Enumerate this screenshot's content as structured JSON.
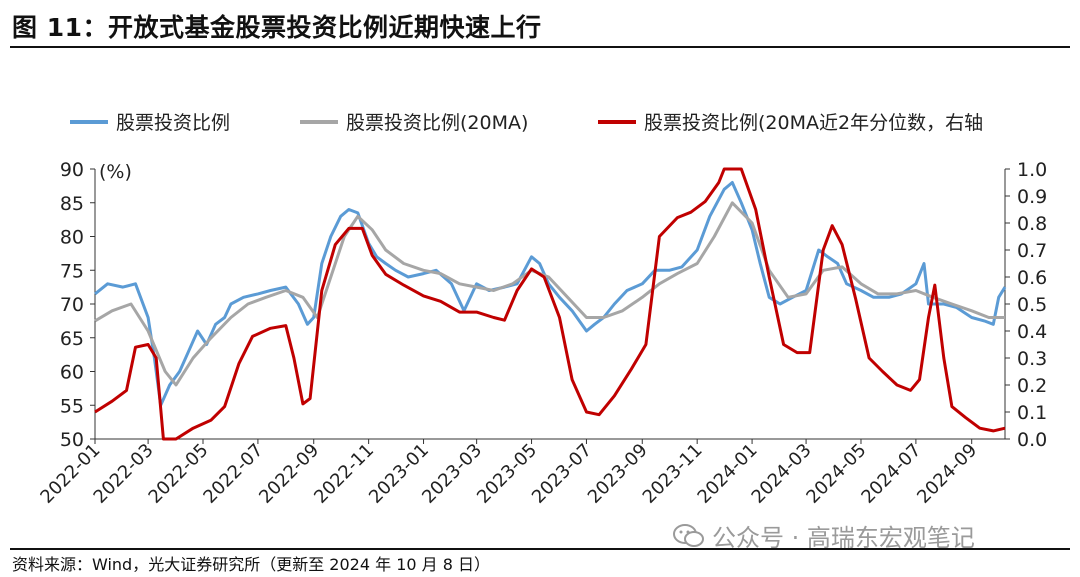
{
  "figure": {
    "title": "图 11：开放式基金股票投资比例近期快速上行",
    "source": "资料来源：Wind，光大证券研究所（更新至 2024 年 10 月 8 日）",
    "watermark": "公众号 · 高瑞东宏观笔记",
    "watermark_icon": "wechat-icon"
  },
  "chart_data": {
    "type": "line",
    "title": "",
    "ylabel": "(%)",
    "y2label": "",
    "ylim": [
      50,
      90
    ],
    "y2lim": [
      0.0,
      1.0
    ],
    "xlim": [
      "2022-01",
      "2024-10"
    ],
    "yticks": [
      "50",
      "55",
      "60",
      "65",
      "70",
      "75",
      "80",
      "85",
      "90"
    ],
    "y2ticks": [
      "0.0",
      "0.1",
      "0.2",
      "0.3",
      "0.4",
      "0.5",
      "0.6",
      "0.7",
      "0.8",
      "0.9",
      "1.0"
    ],
    "xticks": [
      "2022-01",
      "2022-03",
      "2022-05",
      "2022-07",
      "2022-09",
      "2022-11",
      "2023-01",
      "2023-03",
      "2023-05",
      "2023-07",
      "2023-09",
      "2023-11",
      "2024-01",
      "2024-03",
      "2024-05",
      "2024-07",
      "2024-09"
    ],
    "legend": "top",
    "grid": false,
    "series": [
      {
        "name": "股票投资比例",
        "color": "#5b9bd5",
        "axis": "left",
        "points": [
          [
            "2022-01-01",
            71.5
          ],
          [
            "2022-01-15",
            73
          ],
          [
            "2022-02-01",
            72.5
          ],
          [
            "2022-02-15",
            73
          ],
          [
            "2022-03-01",
            68
          ],
          [
            "2022-03-08",
            62
          ],
          [
            "2022-03-15",
            55
          ],
          [
            "2022-03-25",
            58
          ],
          [
            "2022-04-05",
            60
          ],
          [
            "2022-04-15",
            63
          ],
          [
            "2022-04-25",
            66
          ],
          [
            "2022-05-05",
            64
          ],
          [
            "2022-05-15",
            67
          ],
          [
            "2022-05-25",
            68
          ],
          [
            "2022-06-01",
            70
          ],
          [
            "2022-06-15",
            71
          ],
          [
            "2022-07-01",
            71.5
          ],
          [
            "2022-07-15",
            72
          ],
          [
            "2022-08-01",
            72.5
          ],
          [
            "2022-08-15",
            70
          ],
          [
            "2022-08-25",
            67
          ],
          [
            "2022-09-01",
            68
          ],
          [
            "2022-09-10",
            76
          ],
          [
            "2022-09-20",
            80
          ],
          [
            "2022-10-01",
            83
          ],
          [
            "2022-10-10",
            84
          ],
          [
            "2022-10-20",
            83.5
          ],
          [
            "2022-11-01",
            79
          ],
          [
            "2022-11-10",
            77
          ],
          [
            "2022-11-20",
            76
          ],
          [
            "2022-12-01",
            75
          ],
          [
            "2022-12-15",
            74
          ],
          [
            "2023-01-01",
            74.5
          ],
          [
            "2023-01-15",
            75
          ],
          [
            "2023-02-01",
            73
          ],
          [
            "2023-02-15",
            69
          ],
          [
            "2023-03-01",
            73
          ],
          [
            "2023-03-15",
            72
          ],
          [
            "2023-04-01",
            72.5
          ],
          [
            "2023-04-15",
            73
          ],
          [
            "2023-05-01",
            77
          ],
          [
            "2023-05-10",
            76
          ],
          [
            "2023-05-20",
            73
          ],
          [
            "2023-06-01",
            71
          ],
          [
            "2023-06-15",
            69
          ],
          [
            "2023-07-01",
            66
          ],
          [
            "2023-07-10",
            67
          ],
          [
            "2023-07-20",
            68
          ],
          [
            "2023-08-01",
            70
          ],
          [
            "2023-08-15",
            72
          ],
          [
            "2023-09-01",
            73
          ],
          [
            "2023-09-15",
            75
          ],
          [
            "2023-10-01",
            75
          ],
          [
            "2023-10-15",
            75.5
          ],
          [
            "2023-11-01",
            78
          ],
          [
            "2023-11-15",
            83
          ],
          [
            "2023-12-01",
            87
          ],
          [
            "2023-12-10",
            88
          ],
          [
            "2023-12-20",
            85
          ],
          [
            "2024-01-01",
            81
          ],
          [
            "2024-01-10",
            76
          ],
          [
            "2024-01-20",
            71
          ],
          [
            "2024-02-01",
            70
          ],
          [
            "2024-02-15",
            71
          ],
          [
            "2024-03-01",
            72
          ],
          [
            "2024-03-15",
            78
          ],
          [
            "2024-03-25",
            77
          ],
          [
            "2024-04-05",
            76
          ],
          [
            "2024-04-15",
            73
          ],
          [
            "2024-05-01",
            72
          ],
          [
            "2024-05-15",
            71
          ],
          [
            "2024-06-01",
            71
          ],
          [
            "2024-06-15",
            71.5
          ],
          [
            "2024-07-01",
            73
          ],
          [
            "2024-07-10",
            76
          ],
          [
            "2024-07-15",
            70
          ],
          [
            "2024-08-01",
            70
          ],
          [
            "2024-08-15",
            69.5
          ],
          [
            "2024-09-01",
            68
          ],
          [
            "2024-09-15",
            67.5
          ],
          [
            "2024-09-25",
            67
          ],
          [
            "2024-10-01",
            71
          ],
          [
            "2024-10-08",
            72.5
          ]
        ]
      },
      {
        "name": "股票投资比例(20MA)",
        "color": "#a6a6a6",
        "axis": "left",
        "points": [
          [
            "2022-01-01",
            67.5
          ],
          [
            "2022-01-20",
            69
          ],
          [
            "2022-02-10",
            70
          ],
          [
            "2022-03-01",
            66
          ],
          [
            "2022-03-20",
            60
          ],
          [
            "2022-04-01",
            58
          ],
          [
            "2022-04-20",
            62
          ],
          [
            "2022-05-10",
            65
          ],
          [
            "2022-06-01",
            68
          ],
          [
            "2022-06-20",
            70
          ],
          [
            "2022-07-10",
            71
          ],
          [
            "2022-08-01",
            72
          ],
          [
            "2022-08-20",
            71
          ],
          [
            "2022-09-05",
            68
          ],
          [
            "2022-09-20",
            74
          ],
          [
            "2022-10-05",
            80
          ],
          [
            "2022-10-20",
            83
          ],
          [
            "2022-11-05",
            81
          ],
          [
            "2022-11-20",
            78
          ],
          [
            "2022-12-10",
            76
          ],
          [
            "2023-01-01",
            75
          ],
          [
            "2023-01-20",
            74.5
          ],
          [
            "2023-02-10",
            73
          ],
          [
            "2023-03-01",
            72.5
          ],
          [
            "2023-03-20",
            72
          ],
          [
            "2023-04-10",
            73
          ],
          [
            "2023-05-01",
            75
          ],
          [
            "2023-05-20",
            74
          ],
          [
            "2023-06-10",
            71
          ],
          [
            "2023-07-01",
            68
          ],
          [
            "2023-07-20",
            68
          ],
          [
            "2023-08-10",
            69
          ],
          [
            "2023-09-01",
            71
          ],
          [
            "2023-09-20",
            73
          ],
          [
            "2023-10-10",
            74.5
          ],
          [
            "2023-11-01",
            76
          ],
          [
            "2023-11-20",
            80
          ],
          [
            "2023-12-10",
            85
          ],
          [
            "2024-01-01",
            82
          ],
          [
            "2024-01-20",
            75
          ],
          [
            "2024-02-10",
            71
          ],
          [
            "2024-03-01",
            71.5
          ],
          [
            "2024-03-20",
            75
          ],
          [
            "2024-04-10",
            75.5
          ],
          [
            "2024-05-01",
            73
          ],
          [
            "2024-05-20",
            71.5
          ],
          [
            "2024-06-10",
            71.5
          ],
          [
            "2024-07-01",
            72
          ],
          [
            "2024-07-20",
            71
          ],
          [
            "2024-08-10",
            70
          ],
          [
            "2024-09-01",
            69
          ],
          [
            "2024-09-20",
            68
          ],
          [
            "2024-10-08",
            68
          ]
        ]
      },
      {
        "name": "股票投资比例(20MA近2年分位数，右轴",
        "color": "#c00000",
        "axis": "right",
        "points": [
          [
            "2022-01-01",
            0.1
          ],
          [
            "2022-01-20",
            0.14
          ],
          [
            "2022-02-05",
            0.18
          ],
          [
            "2022-02-15",
            0.34
          ],
          [
            "2022-03-01",
            0.35
          ],
          [
            "2022-03-10",
            0.3
          ],
          [
            "2022-03-18",
            0.0
          ],
          [
            "2022-04-01",
            0.0
          ],
          [
            "2022-04-20",
            0.04
          ],
          [
            "2022-05-10",
            0.07
          ],
          [
            "2022-05-25",
            0.12
          ],
          [
            "2022-06-10",
            0.28
          ],
          [
            "2022-06-25",
            0.38
          ],
          [
            "2022-07-15",
            0.41
          ],
          [
            "2022-08-01",
            0.42
          ],
          [
            "2022-08-10",
            0.3
          ],
          [
            "2022-08-20",
            0.13
          ],
          [
            "2022-08-28",
            0.15
          ],
          [
            "2022-09-10",
            0.55
          ],
          [
            "2022-09-25",
            0.72
          ],
          [
            "2022-10-10",
            0.78
          ],
          [
            "2022-10-25",
            0.78
          ],
          [
            "2022-11-05",
            0.68
          ],
          [
            "2022-11-20",
            0.61
          ],
          [
            "2022-12-10",
            0.57
          ],
          [
            "2023-01-01",
            0.53
          ],
          [
            "2023-01-20",
            0.51
          ],
          [
            "2023-02-10",
            0.47
          ],
          [
            "2023-03-01",
            0.47
          ],
          [
            "2023-03-20",
            0.45
          ],
          [
            "2023-04-01",
            0.44
          ],
          [
            "2023-04-15",
            0.55
          ],
          [
            "2023-05-01",
            0.63
          ],
          [
            "2023-05-15",
            0.6
          ],
          [
            "2023-06-01",
            0.45
          ],
          [
            "2023-06-15",
            0.22
          ],
          [
            "2023-07-01",
            0.1
          ],
          [
            "2023-07-15",
            0.09
          ],
          [
            "2023-08-01",
            0.16
          ],
          [
            "2023-08-20",
            0.26
          ],
          [
            "2023-09-05",
            0.35
          ],
          [
            "2023-09-20",
            0.75
          ],
          [
            "2023-10-10",
            0.82
          ],
          [
            "2023-10-25",
            0.84
          ],
          [
            "2023-11-10",
            0.88
          ],
          [
            "2023-11-25",
            0.95
          ],
          [
            "2023-12-01",
            1.0
          ],
          [
            "2023-12-20",
            1.0
          ],
          [
            "2024-01-05",
            0.85
          ],
          [
            "2024-01-20",
            0.6
          ],
          [
            "2024-02-05",
            0.35
          ],
          [
            "2024-02-20",
            0.32
          ],
          [
            "2024-03-05",
            0.32
          ],
          [
            "2024-03-20",
            0.7
          ],
          [
            "2024-03-30",
            0.79
          ],
          [
            "2024-04-10",
            0.72
          ],
          [
            "2024-04-25",
            0.52
          ],
          [
            "2024-05-10",
            0.3
          ],
          [
            "2024-05-25",
            0.25
          ],
          [
            "2024-06-10",
            0.2
          ],
          [
            "2024-06-25",
            0.18
          ],
          [
            "2024-07-05",
            0.22
          ],
          [
            "2024-07-15",
            0.45
          ],
          [
            "2024-07-22",
            0.57
          ],
          [
            "2024-08-01",
            0.3
          ],
          [
            "2024-08-10",
            0.12
          ],
          [
            "2024-08-25",
            0.08
          ],
          [
            "2024-09-10",
            0.04
          ],
          [
            "2024-09-25",
            0.03
          ],
          [
            "2024-10-08",
            0.04
          ]
        ]
      }
    ]
  }
}
